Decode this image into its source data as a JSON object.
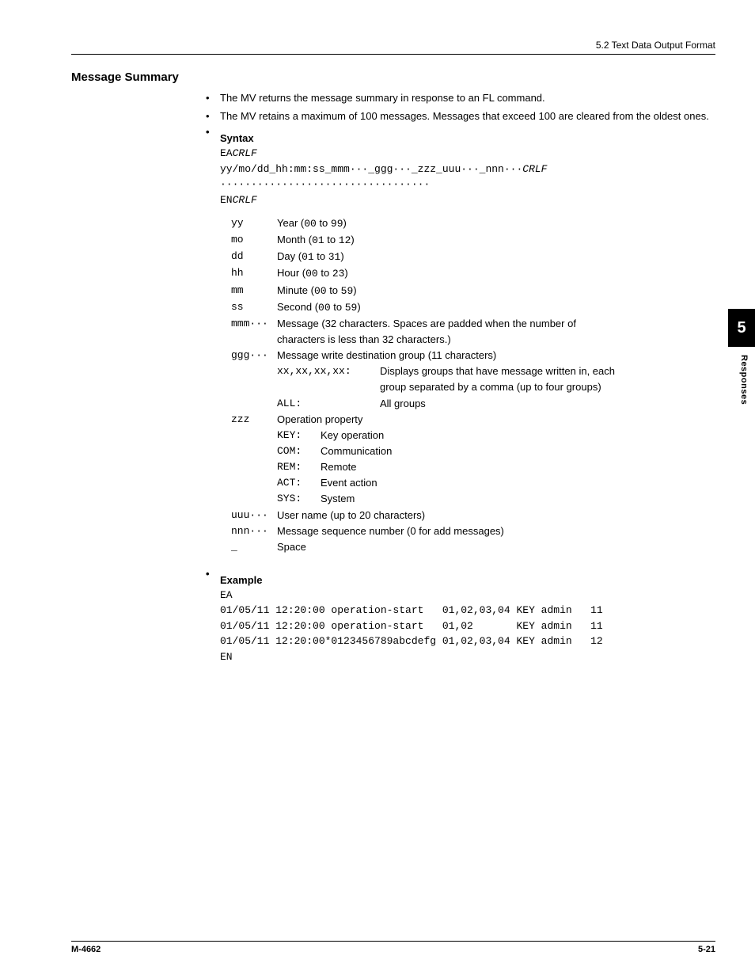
{
  "header": {
    "section_ref": "5.2  Text Data Output Format"
  },
  "section": {
    "title": "Message Summary",
    "bullets": [
      "The MV returns the message summary in response to an FL command.",
      "The MV retains a maximum of 100 messages. Messages that exceed 100 are cleared from the oldest ones."
    ]
  },
  "syntax": {
    "title": "Syntax",
    "line1_a": "EA",
    "line1_b": "CRLF",
    "line2_a": "yy/mo/dd_hh:mm:ss_mmm···_ggg···_zzz_uuu···_nnn···",
    "line2_b": "CRLF",
    "line3": "··································",
    "line4_a": "EN",
    "line4_b": "CRLF"
  },
  "params": [
    {
      "key": "yy",
      "label_a": "Year (",
      "code": "00",
      "mid": " to ",
      "code2": "99",
      "label_b": ")"
    },
    {
      "key": "mo",
      "label_a": "Month (",
      "code": "01",
      "mid": " to ",
      "code2": "12",
      "label_b": ")"
    },
    {
      "key": "dd",
      "label_a": "Day (",
      "code": "01",
      "mid": " to ",
      "code2": "31",
      "label_b": ")"
    },
    {
      "key": "hh",
      "label_a": "Hour (",
      "code": "00",
      "mid": " to ",
      "code2": "23",
      "label_b": ")"
    },
    {
      "key": "mm",
      "label_a": "Minute (",
      "code": "00",
      "mid": " to ",
      "code2": "59",
      "label_b": ")"
    },
    {
      "key": "ss",
      "label_a": "Second (",
      "code": "00",
      "mid": " to ",
      "code2": "59",
      "label_b": ")"
    }
  ],
  "mmm": {
    "key": "mmm···",
    "desc1": "Message (32 characters. Spaces are padded when the number of",
    "desc2": "characters is less than 32 characters.)"
  },
  "ggg": {
    "key": "ggg···",
    "desc": "Message write destination group (11 characters)",
    "sub1_key": "xx,xx,xx,xx:",
    "sub1_desc1": "Displays groups that have message written in, each",
    "sub1_desc2": "group separated by a comma (up to four groups)",
    "sub2_key": "ALL:",
    "sub2_desc": "All groups"
  },
  "zzz": {
    "key": "zzz",
    "desc": "Operation property",
    "ops": [
      {
        "k": "KEY:",
        "v": "Key operation"
      },
      {
        "k": "COM:",
        "v": "Communication"
      },
      {
        "k": "REM:",
        "v": "Remote"
      },
      {
        "k": "ACT:",
        "v": "Event action"
      },
      {
        "k": "SYS:",
        "v": "System"
      }
    ]
  },
  "uuu": {
    "key": "uuu···",
    "desc": "User name (up to 20 characters)"
  },
  "nnn": {
    "key": "nnn···",
    "desc": "Message sequence number (0 for add messages)"
  },
  "underscore": {
    "key": "_",
    "desc": "Space"
  },
  "example": {
    "title": "Example",
    "lines": [
      "EA",
      "01/05/11 12:20:00 operation-start   01,02,03,04 KEY admin   11",
      "01/05/11 12:20:00 operation-start   01,02       KEY admin   11",
      "01/05/11 12:20:00*0123456789abcdefg 01,02,03,04 KEY admin   12",
      "EN"
    ]
  },
  "side": {
    "number": "5",
    "label": "Responses"
  },
  "footer": {
    "left": "M-4662",
    "right": "5-21"
  }
}
